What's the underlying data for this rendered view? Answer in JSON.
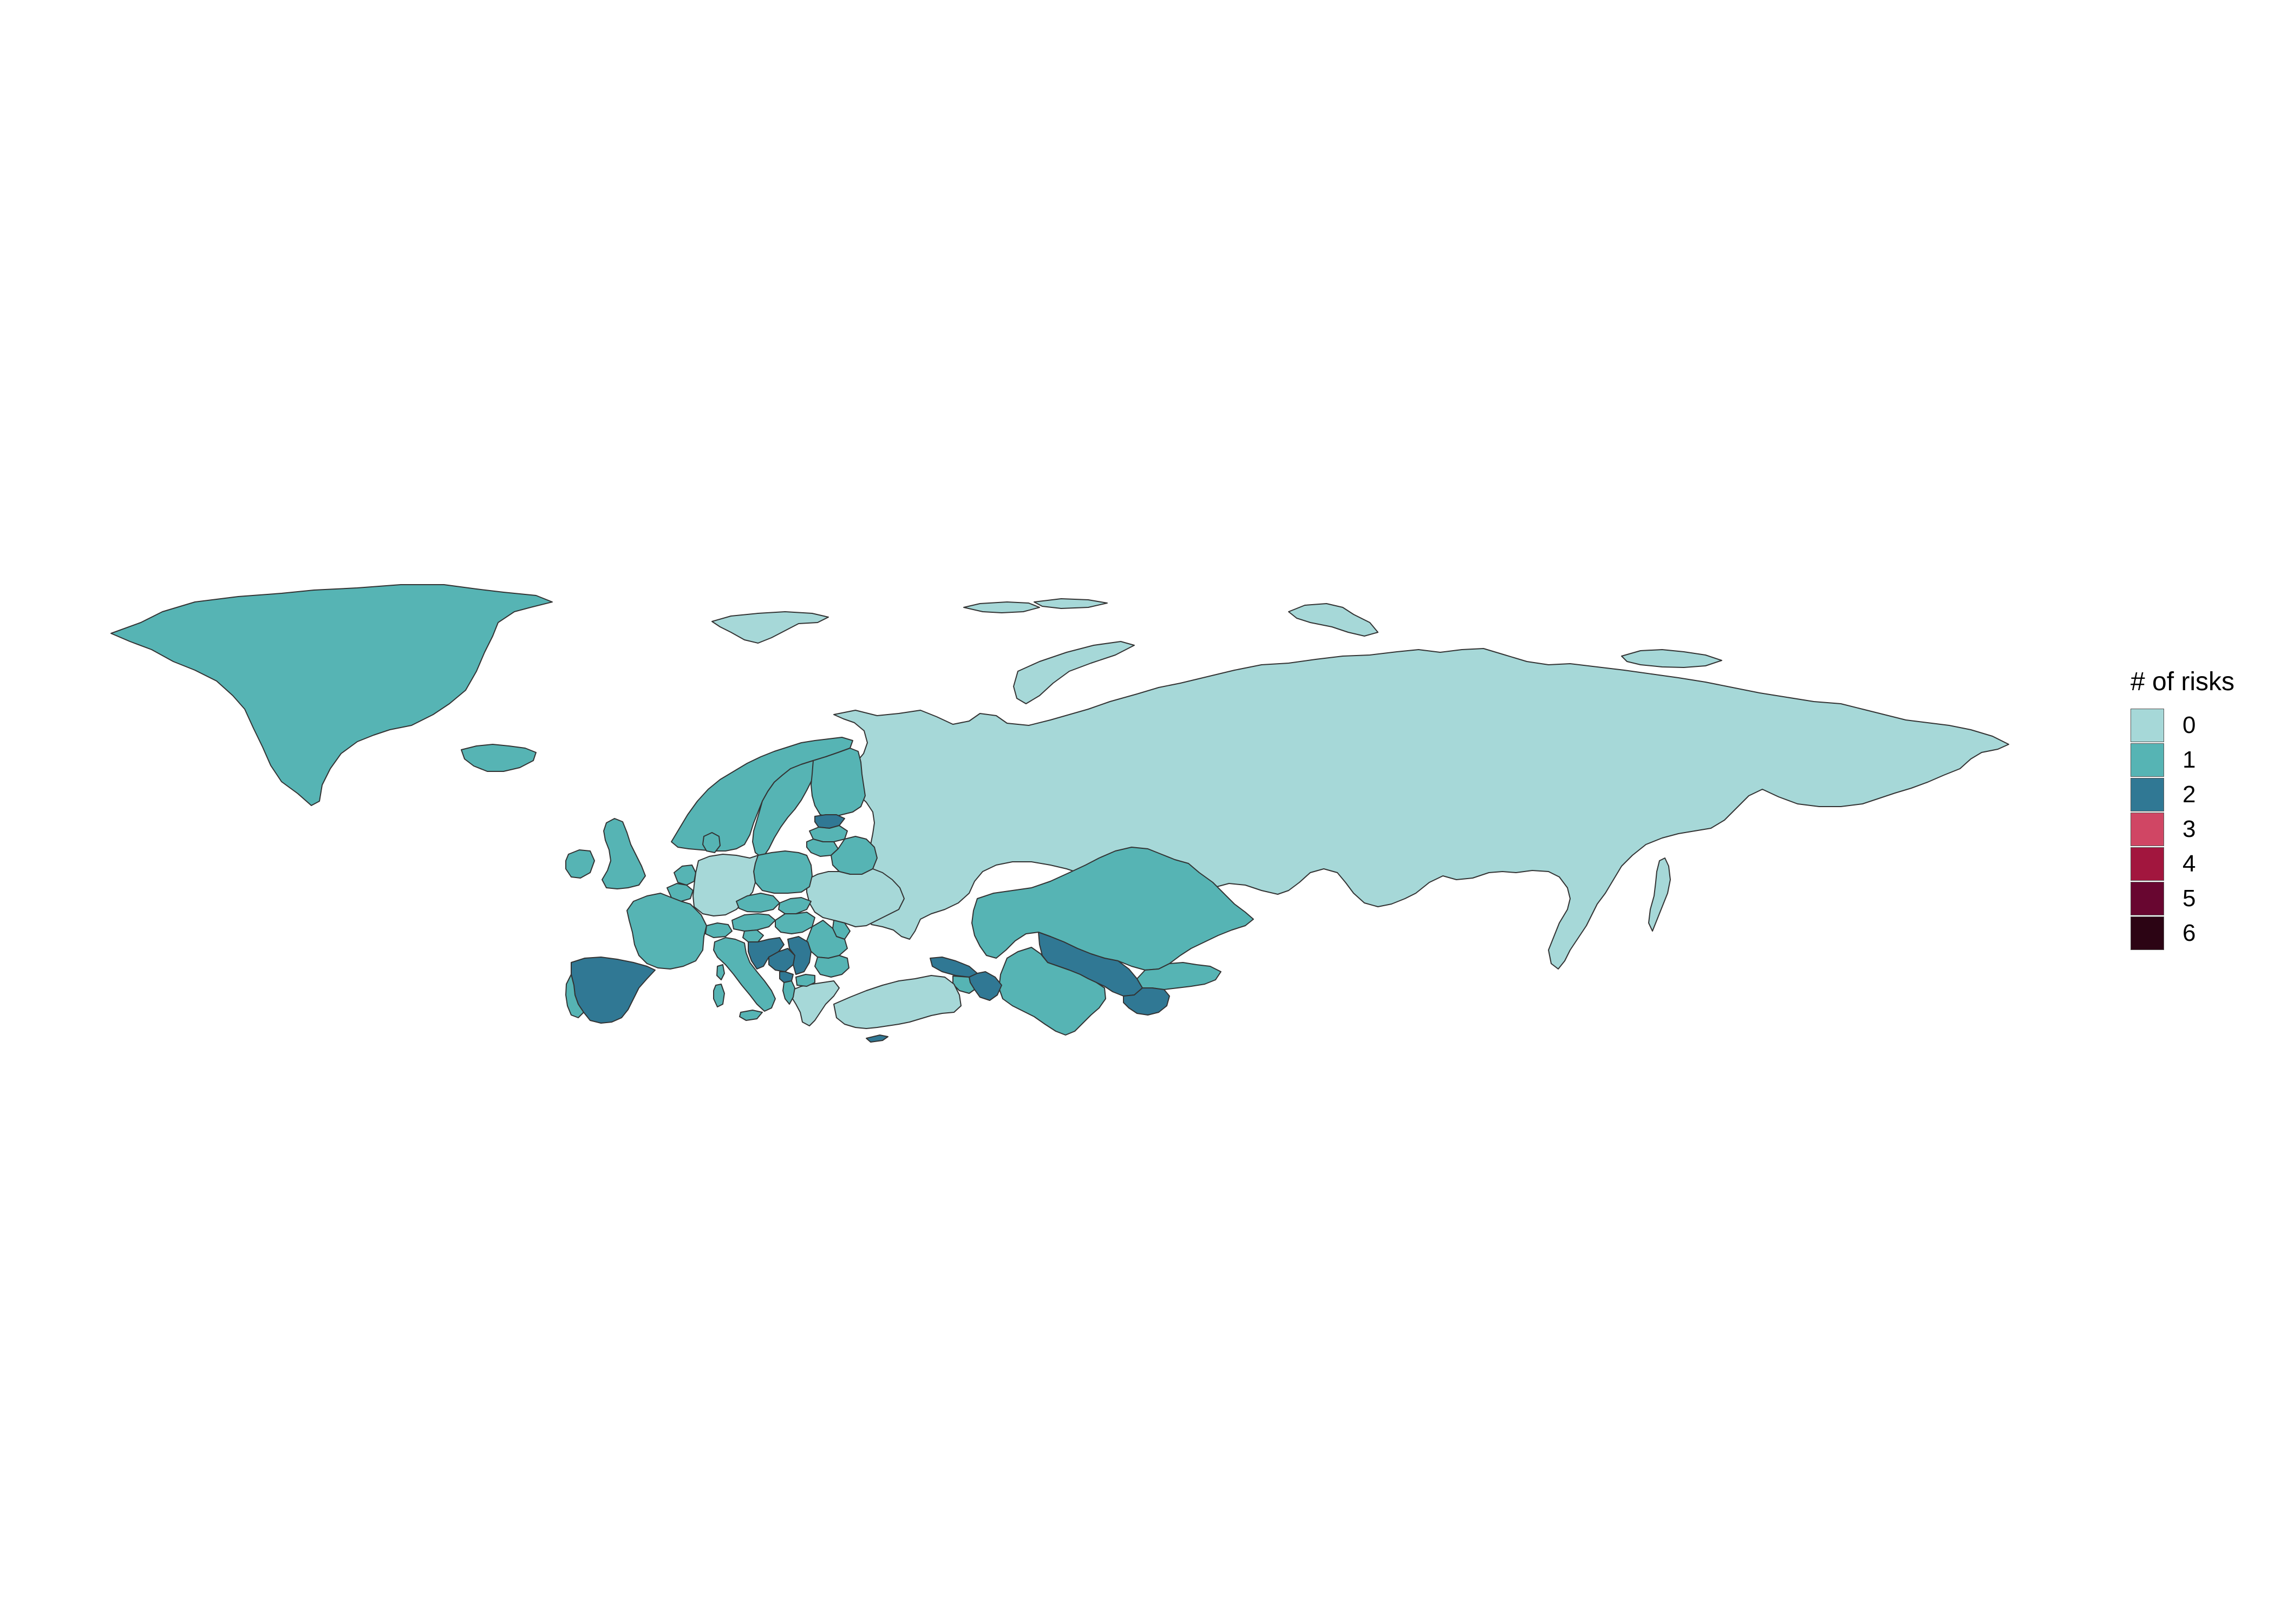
{
  "legend": {
    "title": "# of risks",
    "items": [
      {
        "label": "0",
        "color": "#a6d8d8"
      },
      {
        "label": "1",
        "color": "#56b4b4"
      },
      {
        "label": "2",
        "color": "#307894"
      },
      {
        "label": "3",
        "color": "#d04664"
      },
      {
        "label": "4",
        "color": "#a2163e"
      },
      {
        "label": "5",
        "color": "#680630"
      },
      {
        "label": "6",
        "color": "#2c0414"
      }
    ]
  },
  "regions": [
    {
      "name": "greenland",
      "risks": 1
    },
    {
      "name": "iceland",
      "risks": 1
    },
    {
      "name": "svalbard",
      "risks": 0
    },
    {
      "name": "franz-josef-land",
      "risks": 0
    },
    {
      "name": "novaya-zemlya",
      "risks": 0
    },
    {
      "name": "severnaya-zemlya",
      "risks": 0
    },
    {
      "name": "new-siberian-islands",
      "risks": 0
    },
    {
      "name": "russia",
      "risks": 0
    },
    {
      "name": "sakhalin",
      "risks": 0
    },
    {
      "name": "kazakhstan",
      "risks": 1
    },
    {
      "name": "uzbekistan",
      "risks": 2
    },
    {
      "name": "turkmenistan",
      "risks": 1
    },
    {
      "name": "kyrgyzstan",
      "risks": 1
    },
    {
      "name": "tajikistan",
      "risks": 2
    },
    {
      "name": "georgia",
      "risks": 2
    },
    {
      "name": "azerbaijan",
      "risks": 2
    },
    {
      "name": "armenia",
      "risks": 1
    },
    {
      "name": "turkey",
      "risks": 0
    },
    {
      "name": "cyprus",
      "risks": 2
    },
    {
      "name": "norway",
      "risks": 1
    },
    {
      "name": "sweden",
      "risks": 1
    },
    {
      "name": "finland",
      "risks": 1
    },
    {
      "name": "estonia",
      "risks": 2
    },
    {
      "name": "latvia",
      "risks": 1
    },
    {
      "name": "lithuania",
      "risks": 1
    },
    {
      "name": "belarus",
      "risks": 1
    },
    {
      "name": "ukraine",
      "risks": 0
    },
    {
      "name": "moldova",
      "risks": 1
    },
    {
      "name": "romania",
      "risks": 1
    },
    {
      "name": "bulgaria",
      "risks": 1
    },
    {
      "name": "greece",
      "risks": 0
    },
    {
      "name": "poland",
      "risks": 1
    },
    {
      "name": "germany",
      "risks": 0
    },
    {
      "name": "denmark",
      "risks": 1
    },
    {
      "name": "netherlands",
      "risks": 1
    },
    {
      "name": "belgium",
      "risks": 1
    },
    {
      "name": "france",
      "risks": 1
    },
    {
      "name": "spain",
      "risks": 2
    },
    {
      "name": "portugal",
      "risks": 1
    },
    {
      "name": "italy",
      "risks": 1
    },
    {
      "name": "sicily",
      "risks": 1
    },
    {
      "name": "sardinia",
      "risks": 1
    },
    {
      "name": "corsica",
      "risks": 1
    },
    {
      "name": "switzerland",
      "risks": 1
    },
    {
      "name": "austria",
      "risks": 1
    },
    {
      "name": "czechia",
      "risks": 1
    },
    {
      "name": "slovakia",
      "risks": 1
    },
    {
      "name": "hungary",
      "risks": 1
    },
    {
      "name": "slovenia",
      "risks": 1
    },
    {
      "name": "croatia",
      "risks": 2
    },
    {
      "name": "bosnia",
      "risks": 2
    },
    {
      "name": "serbia",
      "risks": 2
    },
    {
      "name": "montenegro",
      "risks": 2
    },
    {
      "name": "albania",
      "risks": 1
    },
    {
      "name": "north-macedonia",
      "risks": 1
    },
    {
      "name": "united-kingdom",
      "risks": 1
    },
    {
      "name": "ireland",
      "risks": 1
    }
  ]
}
